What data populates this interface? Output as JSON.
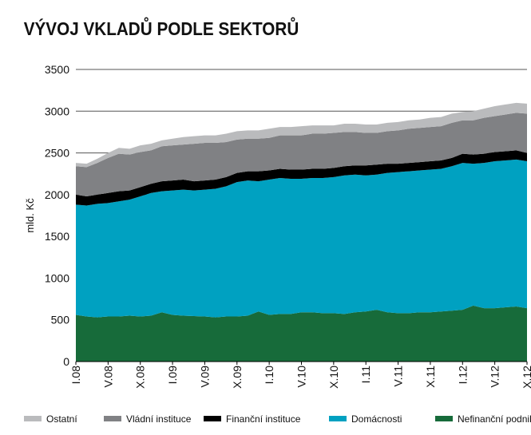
{
  "chart_data": {
    "type": "stacked_area",
    "title": "VÝVOJ VKLADŮ PODLE SEKTORŮ",
    "y_label": "mld. Kč",
    "categories": [
      "I.08",
      null,
      null,
      "V.08",
      null,
      null,
      "X.08",
      null,
      null,
      "I.09",
      null,
      null,
      "V.09",
      null,
      null,
      "X.09",
      null,
      null,
      "I.10",
      null,
      null,
      "V.10",
      null,
      null,
      "X.10",
      null,
      null,
      "I.11",
      null,
      null,
      "V.11",
      null,
      null,
      "X.11",
      null,
      null,
      "I.12",
      null,
      null,
      "V.12",
      null,
      null,
      "X.12"
    ],
    "ylim": [
      0,
      3500
    ],
    "yticks": [
      0,
      500,
      1000,
      1500,
      2000,
      2500,
      3000,
      3500
    ],
    "grid": true,
    "series": [
      {
        "name": "Nefinanční podniky",
        "color": "#176b3a",
        "values": [
          560,
          540,
          530,
          540,
          540,
          550,
          540,
          550,
          590,
          560,
          550,
          545,
          540,
          530,
          540,
          540,
          550,
          600,
          560,
          570,
          570,
          590,
          590,
          580,
          580,
          570,
          590,
          600,
          620,
          590,
          580,
          580,
          590,
          590,
          600,
          610,
          620,
          670,
          640,
          640,
          650,
          660,
          640
        ]
      },
      {
        "name": "Domácnosti",
        "color": "#00a1c1",
        "values": [
          1320,
          1330,
          1360,
          1360,
          1380,
          1390,
          1440,
          1470,
          1450,
          1490,
          1510,
          1505,
          1520,
          1540,
          1560,
          1610,
          1620,
          1560,
          1620,
          1630,
          1620,
          1600,
          1610,
          1620,
          1630,
          1660,
          1650,
          1630,
          1620,
          1670,
          1690,
          1700,
          1700,
          1710,
          1710,
          1730,
          1760,
          1700,
          1740,
          1760,
          1760,
          1760,
          1760
        ]
      },
      {
        "name": "Finanční instituce",
        "color": "#000000",
        "values": [
          120,
          110,
          110,
          120,
          120,
          110,
          110,
          110,
          120,
          120,
          120,
          110,
          110,
          110,
          110,
          110,
          110,
          120,
          110,
          110,
          110,
          110,
          110,
          110,
          110,
          110,
          110,
          120,
          120,
          110,
          100,
          100,
          100,
          100,
          100,
          100,
          110,
          110,
          110,
          110,
          110,
          110,
          100
        ]
      },
      {
        "name": "Vládní instituce",
        "color": "#808184",
        "values": [
          340,
          350,
          380,
          420,
          450,
          430,
          420,
          400,
          420,
          420,
          420,
          450,
          450,
          440,
          420,
          400,
          390,
          390,
          390,
          400,
          410,
          410,
          420,
          420,
          420,
          410,
          400,
          390,
          380,
          390,
          400,
          410,
          410,
          410,
          410,
          420,
          400,
          410,
          430,
          430,
          440,
          450,
          470
        ]
      },
      {
        "name": "Ostatní",
        "color": "#babbbd",
        "values": [
          40,
          40,
          50,
          60,
          70,
          70,
          80,
          80,
          70,
          80,
          90,
          90,
          90,
          90,
          100,
          100,
          100,
          100,
          110,
          100,
          100,
          110,
          100,
          100,
          90,
          100,
          100,
          100,
          100,
          100,
          100,
          100,
          100,
          110,
          110,
          110,
          100,
          110,
          110,
          120,
          120,
          120,
          120
        ]
      }
    ]
  }
}
